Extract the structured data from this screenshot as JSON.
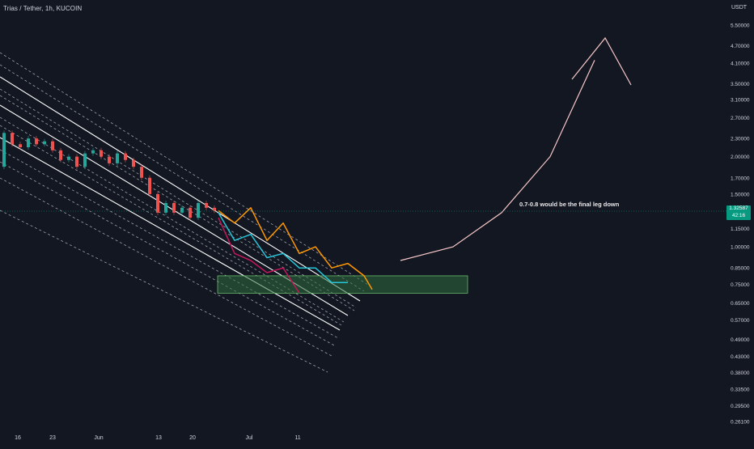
{
  "header": {
    "title": "Trias / Tether, 1h, KUCOIN",
    "currency": "USDT"
  },
  "price_badge": {
    "price": "1.32587",
    "countdown": "42:16"
  },
  "annotation": {
    "text": "0.7-0.8 would be the final leg down"
  },
  "colors": {
    "background": "#131722",
    "axis_text": "#d1d4dc",
    "channel_solid": "#ffffff",
    "channel_dashed": "#b2b5be",
    "projection_orange": "#ff9800",
    "projection_cyan": "#26c6da",
    "projection_pink": "#c2185b",
    "target_zone_fill": "#2e6b3c",
    "target_zone_border": "#66bb6a",
    "arrow": "#f8c8c8",
    "price_line": "#089981",
    "candle_up": "#26a69a",
    "candle_down": "#ef5350"
  },
  "chart_data": {
    "type": "line",
    "title": "Trias / Tether, 1h, KUCOIN",
    "xlabel": "",
    "ylabel": "USDT",
    "y_scale": "log",
    "y_ticks": [
      "5.50000",
      "4.70000",
      "4.10000",
      "3.50000",
      "3.10000",
      "2.70000",
      "2.30000",
      "2.00000",
      "1.70000",
      "1.50000",
      "1.15000",
      "1.00000",
      "0.85000",
      "0.75000",
      "0.65000",
      "0.57000",
      "0.49000",
      "0.43000",
      "0.38000",
      "0.33500",
      "0.29500",
      "0.26100"
    ],
    "x_ticks": [
      "16",
      "23",
      "Jun",
      "13",
      "20",
      "Jul",
      "11"
    ],
    "current_price": 1.32587,
    "target_zone": {
      "low": 0.7,
      "high": 0.8
    },
    "series": [
      {
        "kind": "price",
        "x": [
          0,
          10,
          20,
          30,
          40,
          50,
          60,
          70,
          80,
          90,
          100,
          110,
          120,
          130,
          140,
          150,
          160,
          170,
          180,
          190,
          200,
          210,
          220,
          230,
          240,
          250,
          260,
          270
        ],
        "y": [
          1.85,
          2.4,
          2.2,
          2.15,
          2.3,
          2.2,
          2.25,
          2.1,
          1.95,
          2.0,
          1.85,
          2.05,
          2.1,
          2.0,
          1.9,
          2.05,
          1.95,
          1.85,
          1.7,
          1.5,
          1.3,
          1.4,
          1.3,
          1.35,
          1.25,
          1.4,
          1.35,
          1.32
        ]
      },
      {
        "kind": "projection",
        "x": [
          270,
          290,
          310,
          330,
          350,
          370,
          390,
          410,
          430,
          450,
          460
        ],
        "y": [
          1.32,
          1.2,
          1.35,
          1.05,
          1.2,
          0.95,
          1.0,
          0.85,
          0.88,
          0.8,
          0.72
        ]
      },
      {
        "kind": "projection",
        "x": [
          270,
          290,
          310,
          330,
          350,
          370,
          390,
          410,
          430
        ],
        "y": [
          1.3,
          1.05,
          1.1,
          0.92,
          0.95,
          0.85,
          0.85,
          0.76,
          0.76
        ]
      },
      {
        "kind": "projection",
        "x": [
          270,
          290,
          310,
          330,
          350,
          370
        ],
        "y": [
          1.25,
          0.95,
          0.9,
          0.82,
          0.85,
          0.7
        ]
      },
      {
        "kind": "arrow",
        "x": [
          495,
          560,
          620,
          680,
          735
        ],
        "y": [
          0.9,
          1.0,
          1.3,
          2.0,
          4.2
        ]
      }
    ]
  }
}
